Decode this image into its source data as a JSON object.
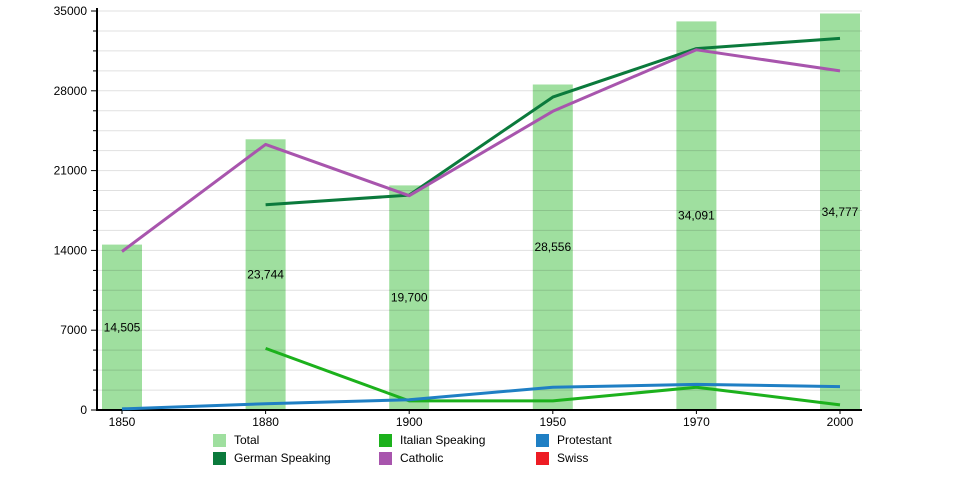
{
  "chart_data": {
    "type": "bar+line",
    "title": "",
    "xlabel": "",
    "ylabel": "",
    "grid": "horizontal",
    "categories": [
      "1850",
      "1880",
      "1900",
      "1950",
      "1970",
      "2000"
    ],
    "bar_series": {
      "name": "Total",
      "color": "#9fdf9f",
      "values": [
        14505,
        23744,
        19700,
        28556,
        34091,
        34777
      ],
      "value_labels": [
        "14,505",
        "23,744",
        "19,700",
        "28,556",
        "34,091",
        "34,777"
      ]
    },
    "line_series": [
      {
        "name": "German Speaking",
        "color": "#0b7a3c",
        "values": [
          null,
          18000,
          18850,
          27450,
          31700,
          32600
        ]
      },
      {
        "name": "Italian Speaking",
        "color": "#1cb11c",
        "values": [
          null,
          5400,
          800,
          800,
          2000,
          450
        ]
      },
      {
        "name": "Catholic",
        "color": "#a855ad",
        "values": [
          13900,
          23300,
          18800,
          26200,
          31600,
          29750
        ]
      },
      {
        "name": "Protestant",
        "color": "#1f7fc4",
        "values": [
          100,
          550,
          900,
          2000,
          2250,
          2050
        ]
      }
    ],
    "y_axis": {
      "min": 0,
      "max": 35000,
      "major_tick_step": 7000,
      "minor_tick_step": 1750,
      "tick_labels": [
        "0",
        "7000",
        "14000",
        "21000",
        "28000",
        "35000"
      ]
    },
    "legend": {
      "position": "bottom",
      "entries": [
        {
          "label": "Total",
          "color": "#9fdf9f"
        },
        {
          "label": "German Speaking",
          "color": "#0b7a3c"
        },
        {
          "label": "Italian Speaking",
          "color": "#1cb11c"
        },
        {
          "label": "Catholic",
          "color": "#a855ad"
        },
        {
          "label": "Protestant",
          "color": "#1f7fc4"
        },
        {
          "label": "Swiss",
          "color": "#ed1c24"
        }
      ]
    }
  }
}
